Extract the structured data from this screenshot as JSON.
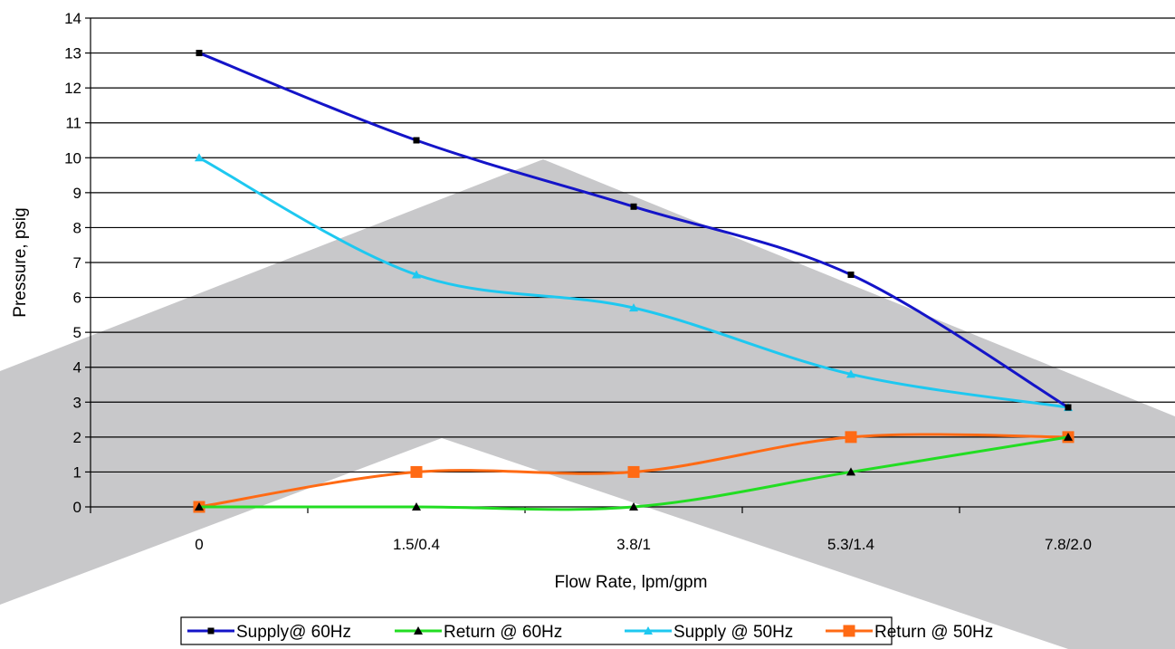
{
  "chart_data": {
    "type": "line",
    "title": "",
    "xlabel": "Flow Rate, lpm/gpm",
    "ylabel": "Pressure, psig",
    "categories": [
      "0",
      "1.5/0.4",
      "3.8/1",
      "5.3/1.4",
      "7.8/2.0"
    ],
    "ylim": [
      0,
      14
    ],
    "yticks": [
      "0",
      "1",
      "2",
      "3",
      "4",
      "5",
      "6",
      "7",
      "8",
      "9",
      "10",
      "11",
      "12",
      "13",
      "14"
    ],
    "grid": "horizontal",
    "legend_position": "bottom",
    "series": [
      {
        "name": "Supply@ 60Hz",
        "values": [
          13,
          10.5,
          8.6,
          6.65,
          2.85
        ],
        "color": "#1414c8",
        "marker": "square",
        "smooth": true
      },
      {
        "name": "Return @ 60Hz",
        "values": [
          0,
          0,
          0,
          1,
          2
        ],
        "color": "#22dd22",
        "marker": "triangle",
        "smooth": true
      },
      {
        "name": "Supply @ 50Hz",
        "values": [
          10,
          6.65,
          5.7,
          3.8,
          2.85
        ],
        "color": "#1ec8f0",
        "marker": "triangle",
        "smooth": true
      },
      {
        "name": "Return @ 50Hz",
        "values": [
          0,
          1,
          1,
          2,
          2
        ],
        "color": "#ff6a14",
        "marker": "big-square",
        "smooth": true
      }
    ],
    "colors": {
      "axis": "#000000",
      "grid": "#000000",
      "watermark": "#c8c8ca"
    }
  }
}
